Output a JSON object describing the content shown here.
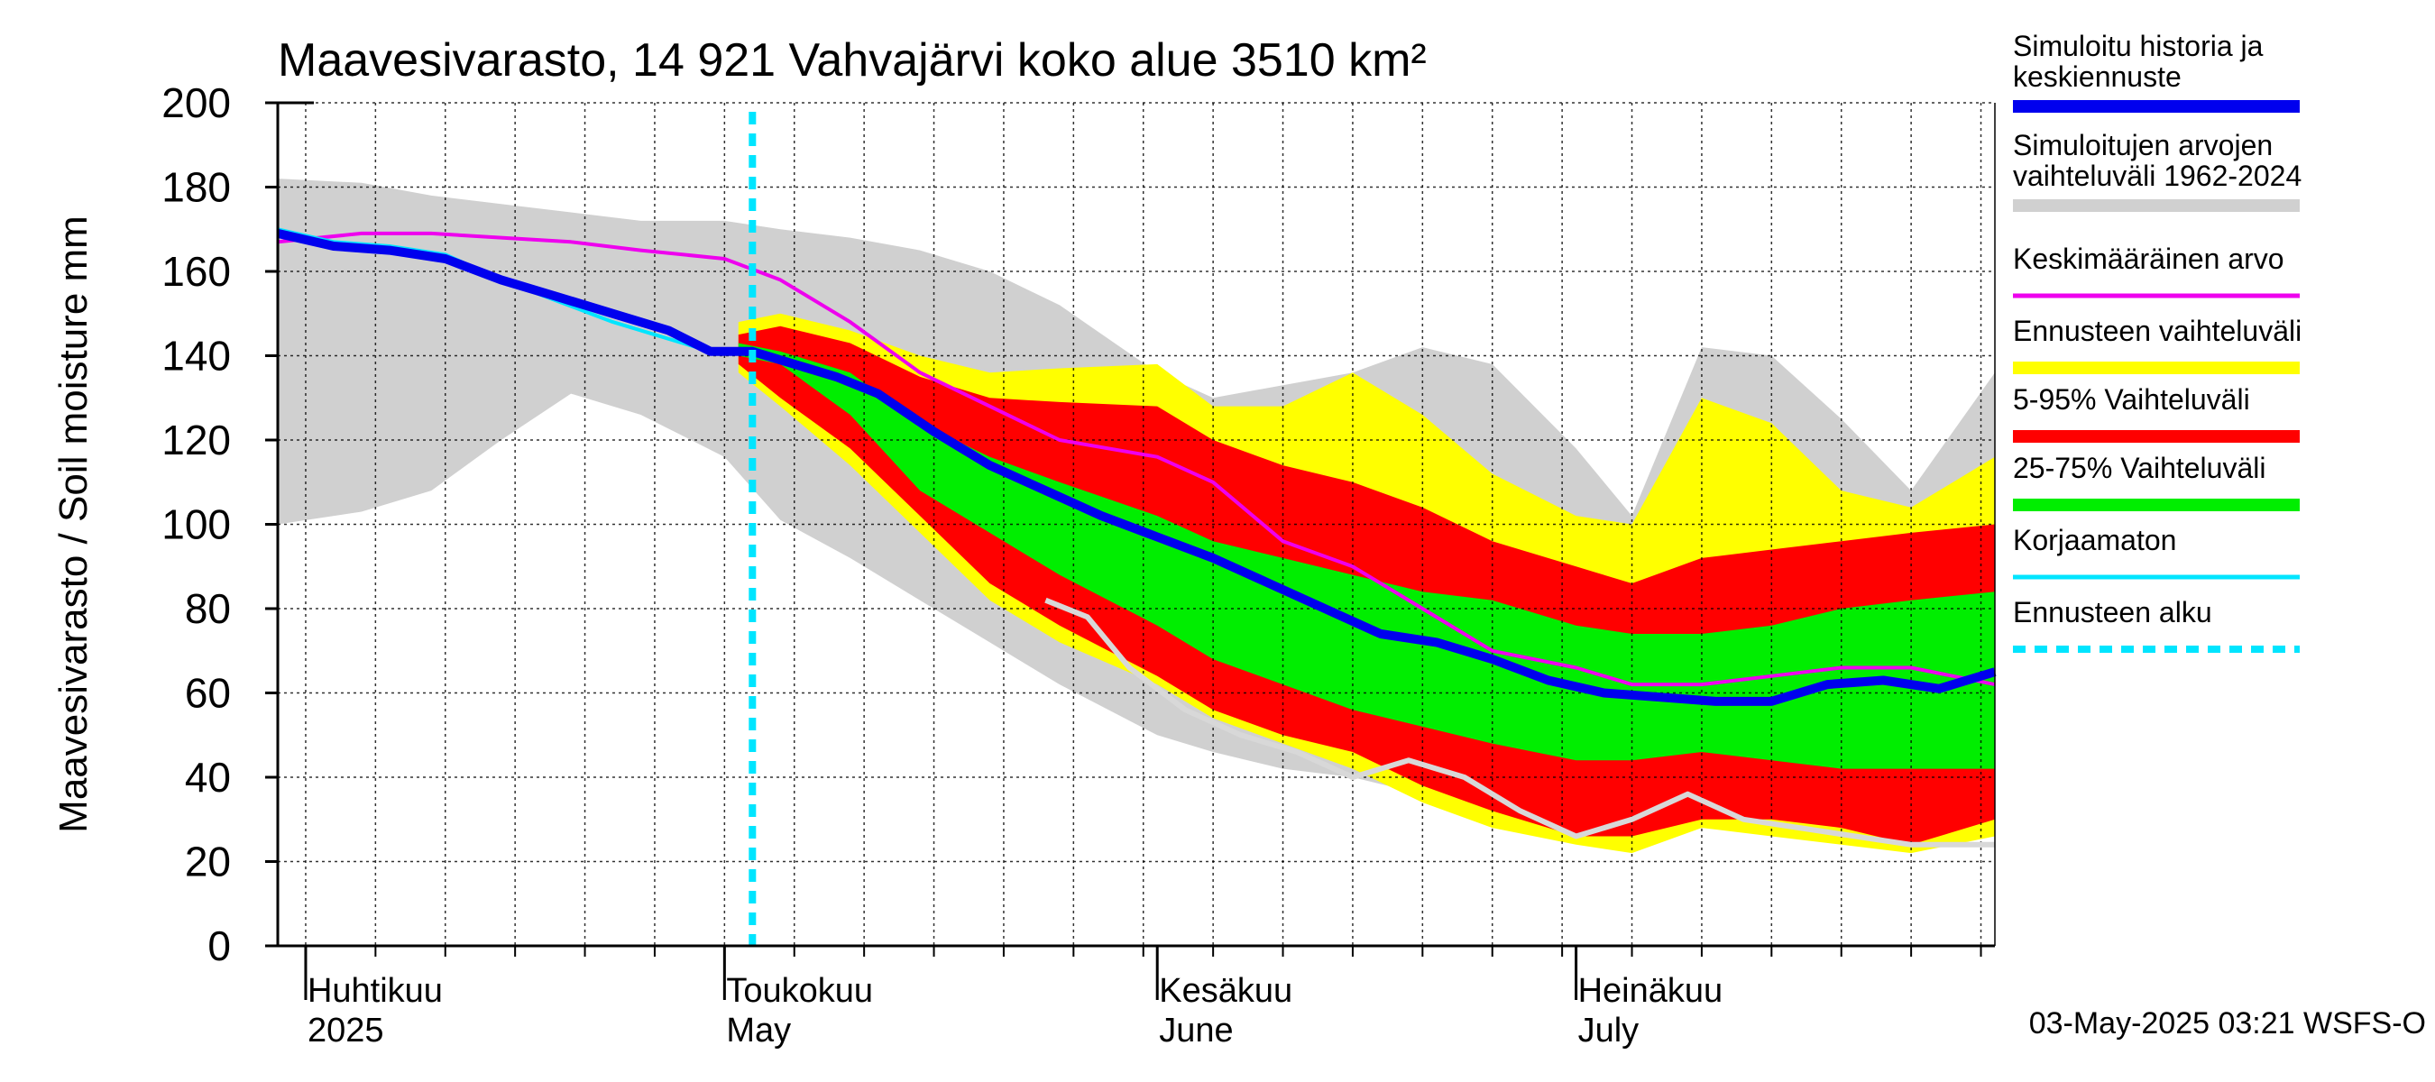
{
  "chart_data": {
    "type": "area",
    "title": "Maavesivarasto, 14 921 Vahvajärvi koko alue 3510 km²",
    "ylabel": "Maavesivarasto / Soil moisture   mm",
    "xlabel": "",
    "ylim": [
      0,
      200
    ],
    "yticks": [
      0,
      20,
      40,
      60,
      80,
      100,
      120,
      140,
      160,
      180,
      200
    ],
    "grid": true,
    "legend_position": "right",
    "x_start": "2025-03-30",
    "x_end": "2025-07-31",
    "forecast_start": "2025-05-03",
    "month_labels": [
      {
        "date": "2025-04-01",
        "fi": "Huhtikuu",
        "en": "2025"
      },
      {
        "date": "2025-05-01",
        "fi": "Toukokuu",
        "en": "May"
      },
      {
        "date": "2025-06-01",
        "fi": "Kesäkuu",
        "en": "June"
      },
      {
        "date": "2025-07-01",
        "fi": "Heinäkuu",
        "en": "July"
      }
    ],
    "timestamp": "03-May-2025 03:21 WSFS-O",
    "legend": [
      {
        "key": "sim",
        "label": "Simuloitu historia ja keskiennuste",
        "color": "#0000ee",
        "style": "thick"
      },
      {
        "key": "range_hist",
        "label": "Simuloitujen arvojen vaihteluväli 1962-2024",
        "color": "#d0d0d0",
        "style": "band"
      },
      {
        "key": "mean",
        "label": "Keskimääräinen arvo",
        "color": "#ee00ee",
        "style": "line"
      },
      {
        "key": "fc_range",
        "label": "Ennusteen vaihteluväli",
        "color": "#ffff00",
        "style": "band"
      },
      {
        "key": "p5_95",
        "label": "5-95% Vaihteluväli",
        "color": "#ff0000",
        "style": "band"
      },
      {
        "key": "p25_75",
        "label": "25-75% Vaihteluväli",
        "color": "#00ee00",
        "style": "band"
      },
      {
        "key": "uncorr",
        "label": "Korjaamaton",
        "color": "#00e5ff",
        "style": "line"
      },
      {
        "key": "fc_start",
        "label": "Ennusteen alku",
        "color": "#00e5ff",
        "style": "dashed"
      }
    ],
    "series": {
      "hist_range": {
        "x": [
          "2025-03-30",
          "2025-04-05",
          "2025-04-10",
          "2025-04-15",
          "2025-04-20",
          "2025-04-25",
          "2025-05-01",
          "2025-05-05",
          "2025-05-10",
          "2025-05-15",
          "2025-05-20",
          "2025-05-25",
          "2025-06-01",
          "2025-06-05",
          "2025-06-10",
          "2025-06-15",
          "2025-06-20",
          "2025-06-25",
          "2025-07-01",
          "2025-07-05",
          "2025-07-10",
          "2025-07-15",
          "2025-07-20",
          "2025-07-25",
          "2025-07-31"
        ],
        "upper": [
          182,
          181,
          178,
          176,
          174,
          172,
          172,
          170,
          168,
          165,
          160,
          152,
          136,
          130,
          133,
          136,
          142,
          138,
          118,
          102,
          142,
          140,
          125,
          108,
          136
        ],
        "lower": [
          100,
          103,
          108,
          120,
          131,
          126,
          116,
          101,
          92,
          82,
          72,
          62,
          50,
          46,
          42,
          40,
          36,
          32,
          30,
          32,
          30,
          28,
          26,
          24,
          26
        ]
      },
      "fc_range": {
        "x": [
          "2025-05-02",
          "2025-05-05",
          "2025-05-10",
          "2025-05-15",
          "2025-05-20",
          "2025-05-25",
          "2025-06-01",
          "2025-06-05",
          "2025-06-10",
          "2025-06-15",
          "2025-06-20",
          "2025-06-25",
          "2025-07-01",
          "2025-07-05",
          "2025-07-10",
          "2025-07-15",
          "2025-07-20",
          "2025-07-25",
          "2025-07-31"
        ],
        "upper": [
          148,
          150,
          146,
          140,
          136,
          137,
          138,
          128,
          128,
          136,
          126,
          112,
          102,
          100,
          130,
          124,
          108,
          104,
          116
        ],
        "lower": [
          136,
          128,
          114,
          98,
          82,
          72,
          62,
          54,
          48,
          42,
          34,
          28,
          24,
          22,
          28,
          26,
          24,
          22,
          26
        ]
      },
      "p5_95": {
        "x": [
          "2025-05-02",
          "2025-05-05",
          "2025-05-10",
          "2025-05-15",
          "2025-05-20",
          "2025-05-25",
          "2025-06-01",
          "2025-06-05",
          "2025-06-10",
          "2025-06-15",
          "2025-06-20",
          "2025-06-25",
          "2025-07-01",
          "2025-07-05",
          "2025-07-10",
          "2025-07-15",
          "2025-07-20",
          "2025-07-25",
          "2025-07-31"
        ],
        "upper": [
          145,
          147,
          143,
          135,
          130,
          129,
          128,
          120,
          114,
          110,
          104,
          96,
          90,
          86,
          92,
          94,
          96,
          98,
          100
        ],
        "lower": [
          138,
          130,
          118,
          102,
          86,
          76,
          64,
          56,
          50,
          46,
          38,
          32,
          26,
          26,
          30,
          30,
          28,
          24,
          30
        ]
      },
      "p25_75": {
        "x": [
          "2025-05-02",
          "2025-05-05",
          "2025-05-10",
          "2025-05-15",
          "2025-05-20",
          "2025-05-25",
          "2025-06-01",
          "2025-06-05",
          "2025-06-10",
          "2025-06-15",
          "2025-06-20",
          "2025-06-25",
          "2025-07-01",
          "2025-07-05",
          "2025-07-10",
          "2025-07-15",
          "2025-07-20",
          "2025-07-25",
          "2025-07-31"
        ],
        "upper": [
          143,
          141,
          136,
          124,
          116,
          110,
          102,
          96,
          92,
          88,
          84,
          82,
          76,
          74,
          74,
          76,
          80,
          82,
          84
        ],
        "lower": [
          140,
          138,
          126,
          108,
          98,
          88,
          76,
          68,
          62,
          56,
          52,
          48,
          44,
          44,
          46,
          44,
          42,
          42,
          42
        ]
      },
      "sim": {
        "x": [
          "2025-03-30",
          "2025-04-03",
          "2025-04-07",
          "2025-04-11",
          "2025-04-15",
          "2025-04-19",
          "2025-04-23",
          "2025-04-27",
          "2025-04-30",
          "2025-05-03",
          "2025-05-06",
          "2025-05-09",
          "2025-05-12",
          "2025-05-16",
          "2025-05-20",
          "2025-05-24",
          "2025-05-28",
          "2025-06-01",
          "2025-06-05",
          "2025-06-09",
          "2025-06-13",
          "2025-06-17",
          "2025-06-21",
          "2025-06-25",
          "2025-06-29",
          "2025-07-03",
          "2025-07-07",
          "2025-07-11",
          "2025-07-15",
          "2025-07-19",
          "2025-07-23",
          "2025-07-27",
          "2025-07-31"
        ],
        "y": [
          169,
          166,
          165,
          163,
          158,
          154,
          150,
          146,
          141,
          141,
          138,
          135,
          131,
          122,
          114,
          108,
          102,
          97,
          92,
          86,
          80,
          74,
          72,
          68,
          63,
          60,
          59,
          58,
          58,
          62,
          63,
          61,
          65
        ]
      },
      "mean": {
        "x": [
          "2025-03-30",
          "2025-04-05",
          "2025-04-10",
          "2025-04-15",
          "2025-04-20",
          "2025-04-25",
          "2025-05-01",
          "2025-05-05",
          "2025-05-10",
          "2025-05-15",
          "2025-05-20",
          "2025-05-25",
          "2025-06-01",
          "2025-06-05",
          "2025-06-10",
          "2025-06-15",
          "2025-06-20",
          "2025-06-25",
          "2025-07-01",
          "2025-07-05",
          "2025-07-10",
          "2025-07-15",
          "2025-07-20",
          "2025-07-25",
          "2025-07-31"
        ],
        "y": [
          167,
          169,
          169,
          168,
          167,
          165,
          163,
          158,
          148,
          136,
          128,
          120,
          116,
          110,
          96,
          90,
          80,
          70,
          66,
          62,
          62,
          64,
          66,
          66,
          62
        ]
      },
      "uncorr": {
        "x": [
          "2025-03-30",
          "2025-04-03",
          "2025-04-07",
          "2025-04-11",
          "2025-04-15",
          "2025-04-19",
          "2025-04-23",
          "2025-04-27",
          "2025-04-30",
          "2025-05-03"
        ],
        "y": [
          170,
          167,
          166,
          164,
          158,
          153,
          148,
          144,
          141,
          141
        ]
      },
      "gray_line": {
        "x": [
          "2025-05-24",
          "2025-05-27",
          "2025-05-30",
          "2025-06-03",
          "2025-06-07",
          "2025-06-11",
          "2025-06-15",
          "2025-06-19",
          "2025-06-23",
          "2025-06-27",
          "2025-07-01",
          "2025-07-05",
          "2025-07-09",
          "2025-07-13",
          "2025-07-17",
          "2025-07-21",
          "2025-07-25",
          "2025-07-31"
        ],
        "y": [
          82,
          78,
          66,
          56,
          50,
          46,
          40,
          44,
          40,
          32,
          26,
          30,
          36,
          30,
          28,
          26,
          24,
          24
        ]
      }
    }
  }
}
